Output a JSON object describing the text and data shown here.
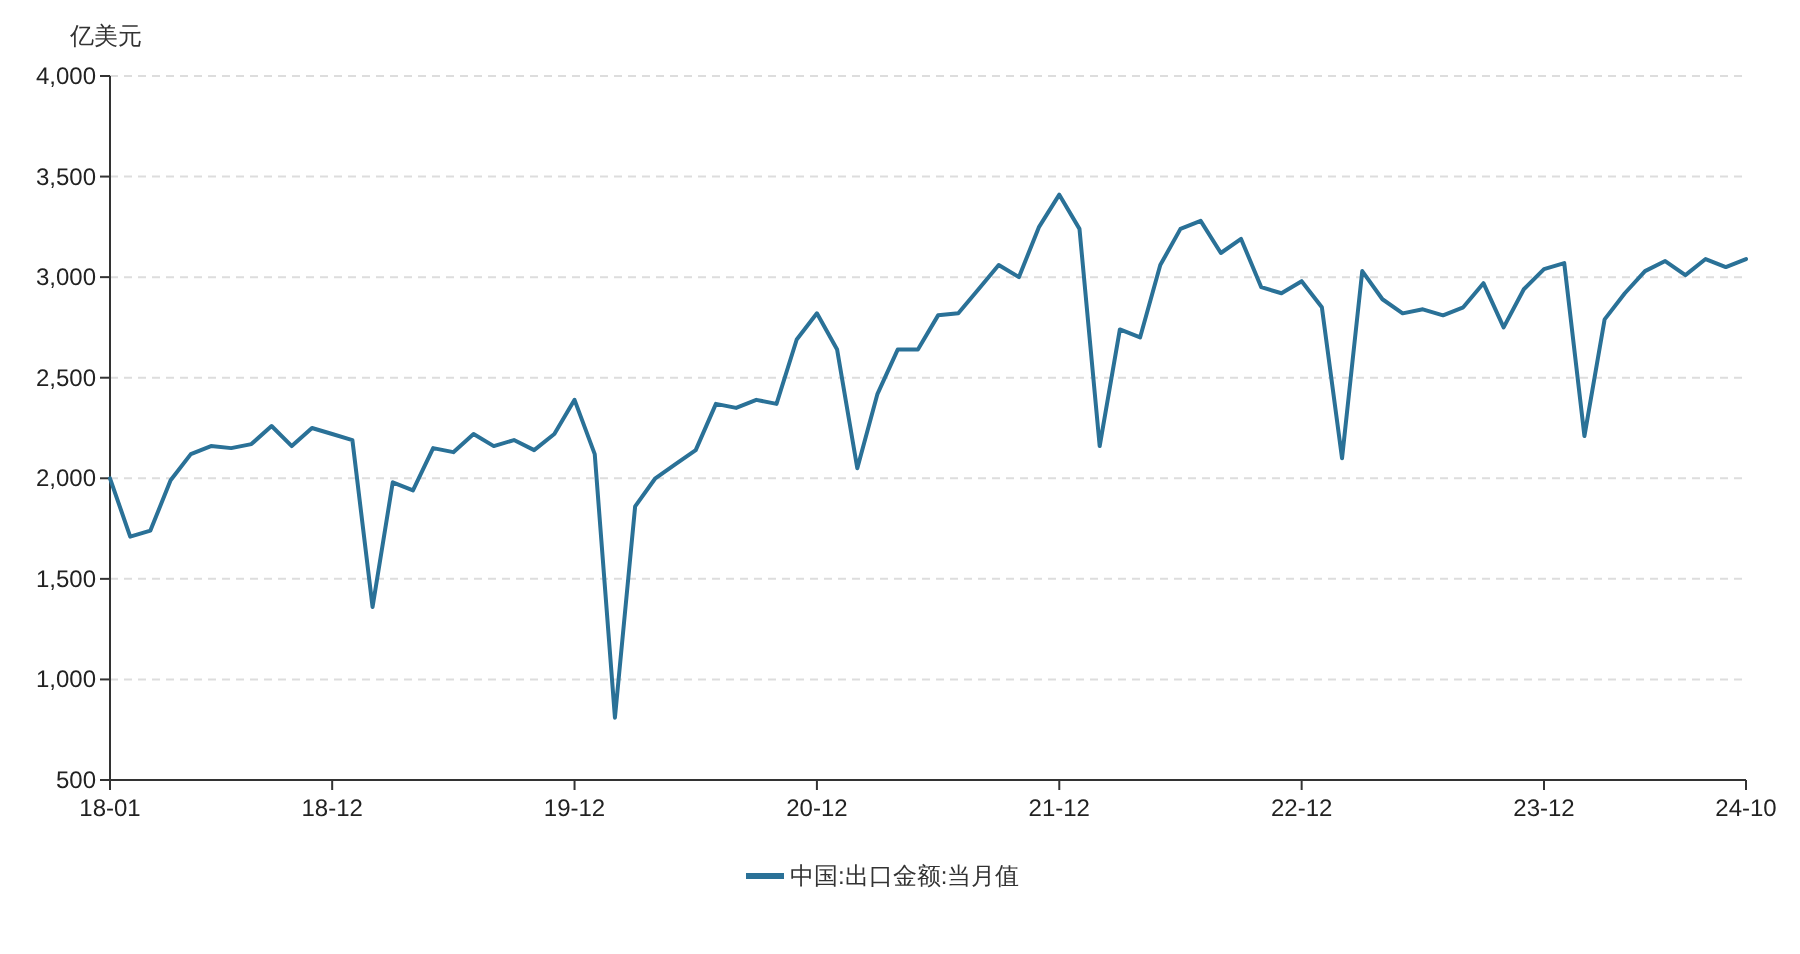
{
  "chart_data": {
    "type": "line",
    "ylabel": "亿美元",
    "categories": [
      "18-01",
      null,
      null,
      null,
      null,
      null,
      null,
      null,
      null,
      null,
      null,
      "18-12",
      null,
      null,
      null,
      null,
      null,
      null,
      null,
      null,
      null,
      null,
      null,
      "19-12",
      null,
      null,
      null,
      null,
      null,
      null,
      null,
      null,
      null,
      null,
      null,
      "20-12",
      null,
      null,
      null,
      null,
      null,
      null,
      null,
      null,
      null,
      null,
      null,
      "21-12",
      null,
      null,
      null,
      null,
      null,
      null,
      null,
      null,
      null,
      null,
      null,
      "22-12",
      null,
      null,
      null,
      null,
      null,
      null,
      null,
      null,
      null,
      null,
      null,
      "23-12",
      null,
      null,
      null,
      null,
      null,
      null,
      null,
      null,
      null,
      "24-10"
    ],
    "series": [
      {
        "name": "中国:出口金额:当月值",
        "color": "#2a7197",
        "values": [
          2000,
          1710,
          1740,
          1990,
          2120,
          2160,
          2150,
          2170,
          2260,
          2160,
          2250,
          2220,
          2190,
          1360,
          1980,
          1940,
          2150,
          2130,
          2220,
          2160,
          2190,
          2140,
          2220,
          2390,
          2120,
          810,
          1860,
          2000,
          2070,
          2140,
          2370,
          2350,
          2390,
          2370,
          2690,
          2820,
          2640,
          2050,
          2420,
          2640,
          2640,
          2810,
          2820,
          2940,
          3060,
          3000,
          3250,
          3410,
          3240,
          2160,
          2740,
          2700,
          3060,
          3240,
          3280,
          3120,
          3190,
          2950,
          2920,
          2980,
          2850,
          2100,
          3030,
          2890,
          2820,
          2840,
          2810,
          2850,
          2970,
          2750,
          2940,
          3040,
          3070,
          2210,
          2790,
          2920,
          3030,
          3080,
          3010,
          3090,
          3050,
          3090
        ]
      }
    ],
    "ylim": [
      500,
      4000
    ],
    "yticks": [
      {
        "value": 500,
        "label": "500"
      },
      {
        "value": 1000,
        "label": "1,000"
      },
      {
        "value": 1500,
        "label": "1,500"
      },
      {
        "value": 2000,
        "label": "2,000"
      },
      {
        "value": 2500,
        "label": "2,500"
      },
      {
        "value": 3000,
        "label": "3,000"
      },
      {
        "value": 3500,
        "label": "3,500"
      },
      {
        "value": 4000,
        "label": "4,000"
      }
    ],
    "grid": "y",
    "legend": "bottom",
    "marker": "none",
    "line_style": "solid"
  }
}
